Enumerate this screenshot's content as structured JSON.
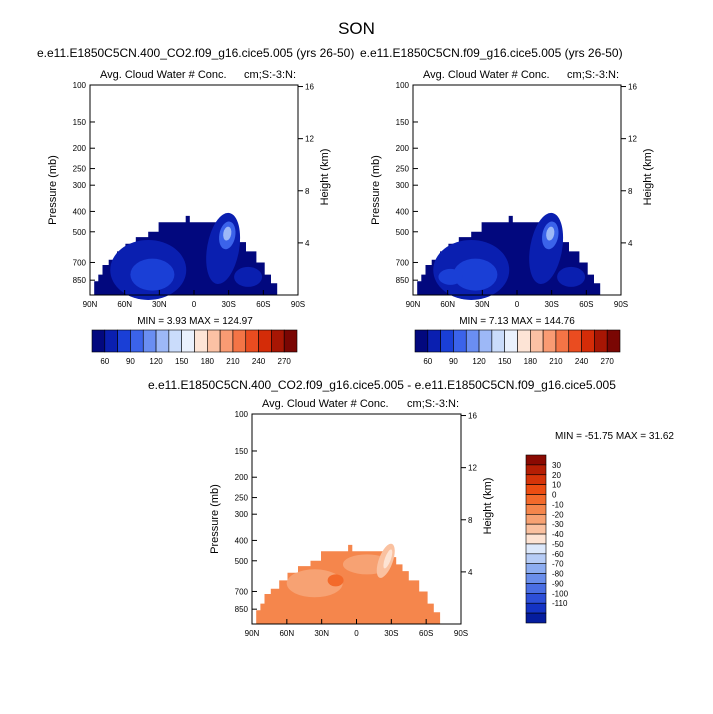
{
  "figure": {
    "title": "SON"
  },
  "chart_data": [
    {
      "type": "heatmap",
      "title": "e.e11.E1850C5CN.400_CO2.f09_g16.cice5.005 (yrs 26-50)",
      "left_string": "Avg. Cloud Water # Conc.",
      "right_string": "cm;S:-3:N:",
      "xlabel": "",
      "ylabel": "Pressure (mb)",
      "ylabel_right": "Height (km)",
      "x_ticks": [
        "90N",
        "60N",
        "30N",
        "0",
        "30S",
        "60S",
        "90S"
      ],
      "y_ticks": [
        "100",
        "150",
        "200",
        "250",
        "300",
        "400",
        "500",
        "700",
        "850"
      ],
      "y_right_ticks": [
        "16",
        "12",
        "8",
        "4"
      ],
      "stats": "MIN =   3.93  MAX = 124.97",
      "colorbar_labels": [
        "60",
        "90",
        "120",
        "150",
        "180",
        "210",
        "240",
        "270"
      ],
      "colorbar_colors": [
        "#02087e",
        "#0a1fb0",
        "#1a3fd6",
        "#3b63ea",
        "#6a8ef2",
        "#9db8f7",
        "#cadcfb",
        "#eaf1fd",
        "#fde4d6",
        "#fbc1a4",
        "#f99b73",
        "#f47446",
        "#ea4c20",
        "#d42c08",
        "#a71604",
        "#7a0603"
      ],
      "ylim": [
        1000,
        100
      ]
    },
    {
      "type": "heatmap",
      "title": "e.e11.E1850C5CN.f09_g16.cice5.005 (yrs 26-50)",
      "left_string": "Avg. Cloud Water # Conc.",
      "right_string": "cm;S:-3:N:",
      "xlabel": "",
      "ylabel": "Pressure (mb)",
      "ylabel_right": "Height (km)",
      "x_ticks": [
        "90N",
        "60N",
        "30N",
        "0",
        "30S",
        "60S",
        "90S"
      ],
      "y_ticks": [
        "100",
        "150",
        "200",
        "250",
        "300",
        "400",
        "500",
        "700",
        "850"
      ],
      "y_right_ticks": [
        "16",
        "12",
        "8",
        "4"
      ],
      "stats": "MIN =   7.13  MAX = 144.76",
      "colorbar_labels": [
        "60",
        "90",
        "120",
        "150",
        "180",
        "210",
        "240",
        "270"
      ],
      "colorbar_colors": [
        "#02087e",
        "#0a1fb0",
        "#1a3fd6",
        "#3b63ea",
        "#6a8ef2",
        "#9db8f7",
        "#cadcfb",
        "#eaf1fd",
        "#fde4d6",
        "#fbc1a4",
        "#f99b73",
        "#f47446",
        "#ea4c20",
        "#d42c08",
        "#a71604",
        "#7a0603"
      ],
      "ylim": [
        1000,
        100
      ]
    },
    {
      "type": "heatmap",
      "title": "e.e11.E1850C5CN.400_CO2.f09_g16.cice5.005 - e.e11.E1850C5CN.f09_g16.cice5.005",
      "left_string": "Avg. Cloud Water # Conc.",
      "right_string": "cm;S:-3:N:",
      "xlabel": "",
      "ylabel": "Pressure (mb)",
      "ylabel_right": "Height (km)",
      "x_ticks": [
        "90N",
        "60N",
        "30N",
        "0",
        "30S",
        "60S",
        "90S"
      ],
      "y_ticks": [
        "100",
        "150",
        "200",
        "250",
        "300",
        "400",
        "500",
        "700",
        "850"
      ],
      "y_right_ticks": [
        "16",
        "12",
        "8",
        "4"
      ],
      "stats": "MIN = -51.75  MAX =  31.62",
      "colorbar_labels": [
        "30",
        "20",
        "10",
        "0",
        "-10",
        "-20",
        "-30",
        "-40",
        "-50",
        "-60",
        "-70",
        "-80",
        "-90",
        "-100",
        "-110"
      ],
      "colorbar_colors": [
        "#8a0a02",
        "#b41e04",
        "#d53409",
        "#ec4d12",
        "#f36a2b",
        "#f5864c",
        "#f7a273",
        "#fac1a0",
        "#fde3d3",
        "#dce8fb",
        "#b6ccf6",
        "#8dadf1",
        "#6a8eeb",
        "#4a6ee3",
        "#2d4fd8",
        "#1433c4",
        "#051d9e"
      ],
      "ylim": [
        1000,
        100
      ]
    }
  ]
}
